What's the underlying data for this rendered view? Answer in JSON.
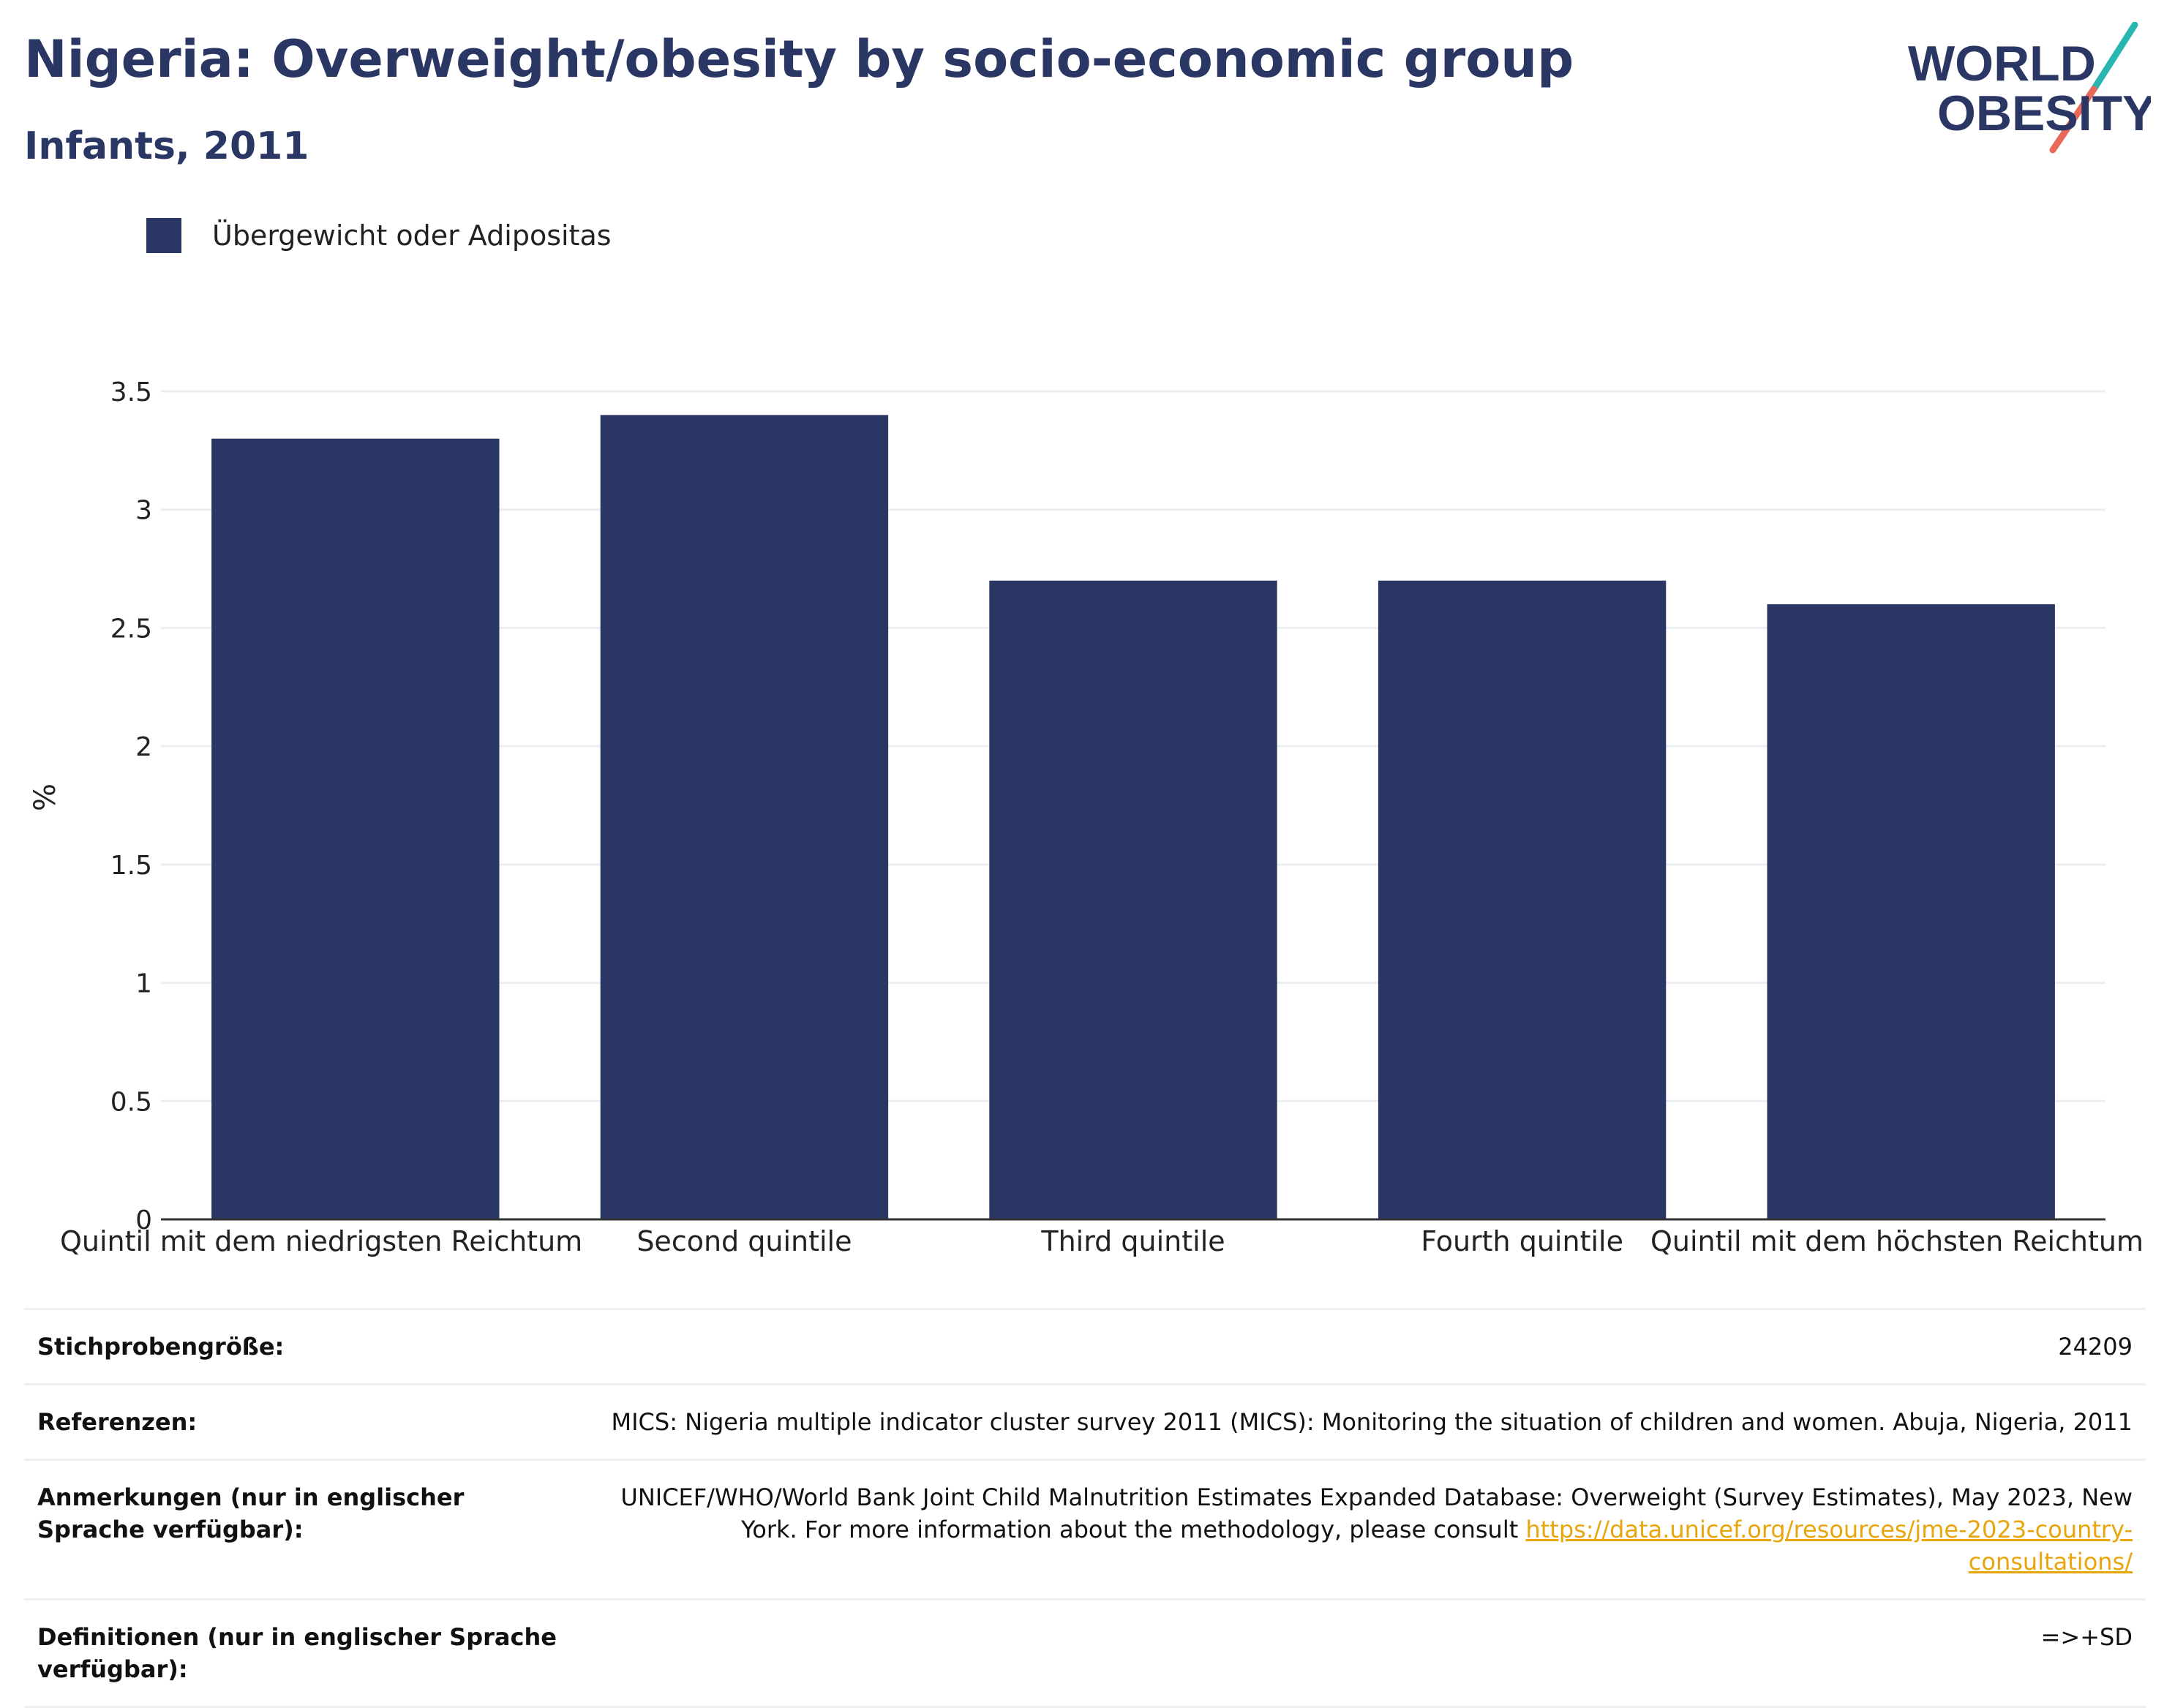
{
  "header": {
    "title": "Nigeria: Overweight/obesity by socio-economic group",
    "subtitle": "Infants, 2011"
  },
  "logo": {
    "line1": "WORLD",
    "line2": "OBESITY",
    "colors": {
      "text": "#2a3663",
      "slash_top": "#2ab6b0",
      "slash_bottom": "#e8695a"
    }
  },
  "legend": {
    "label": "Übergewicht oder Adipositas",
    "color": "#2a3663"
  },
  "chart_data": {
    "type": "bar",
    "categories": [
      "Quintil mit dem niedrigsten Reichtum",
      "Second quintile",
      "Third quintile",
      "Fourth quintile",
      "Quintil mit dem höchsten Reichtum"
    ],
    "series": [
      {
        "name": "Übergewicht oder Adipositas",
        "values": [
          3.3,
          3.4,
          2.7,
          2.7,
          2.6
        ]
      }
    ],
    "ylabel": "%",
    "ylim": [
      0,
      3.5
    ],
    "yticks": [
      0,
      0.5,
      1,
      1.5,
      2,
      2.5,
      3,
      3.5
    ],
    "ytick_labels": [
      "0",
      "0.5",
      "1",
      "1.5",
      "2",
      "2.5",
      "3",
      "3.5"
    ],
    "grid": true,
    "legend_position": "top-left",
    "bar_color": "#2a3663"
  },
  "info": {
    "sample_label": "Stichprobengröße:",
    "sample_value": "24209",
    "references_label": "Referenzen:",
    "references_value": "MICS: Nigeria multiple indicator cluster survey 2011 (MICS): Monitoring the situation of children and women. Abuja, Nigeria, 2011",
    "notes_label": "Anmerkungen (nur in englischer Sprache verfügbar):",
    "notes_line1": "UNICEF/WHO/World Bank Joint Child Malnutrition Estimates Expanded Database: Overweight (Survey Estimates), May 2023, New",
    "notes_line2": "York. For more information about the methodology, please consult",
    "notes_link": "https://data.unicef.org/resources/jme-2023-country-consultations/",
    "definitions_label": "Definitionen (nur in englischer Sprache verfügbar):",
    "definitions_value": "=>+SD"
  }
}
